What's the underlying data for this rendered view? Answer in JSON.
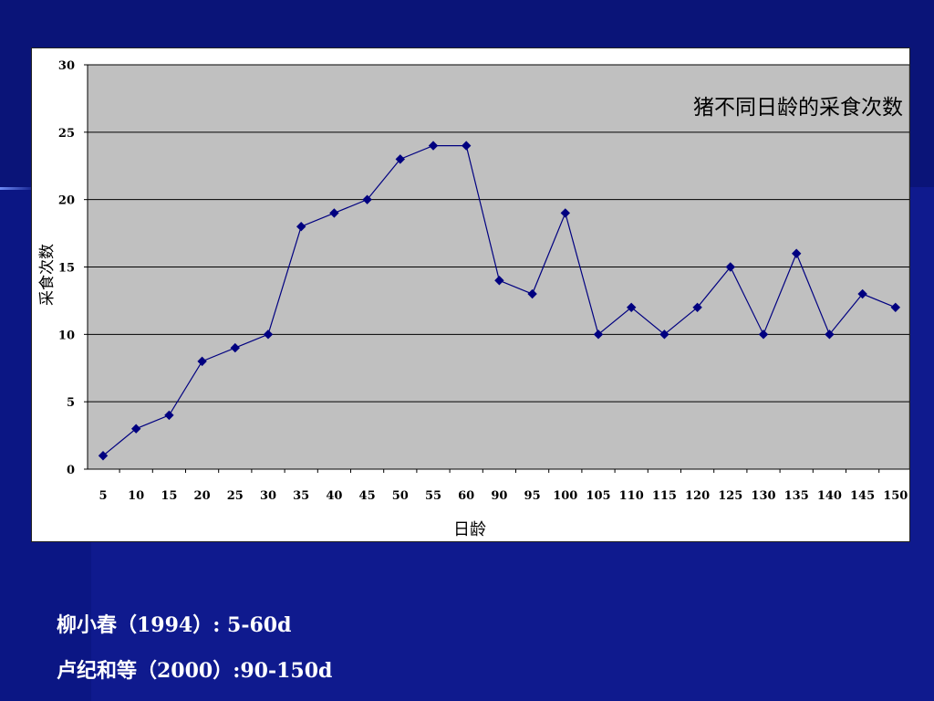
{
  "chart_data": {
    "type": "line",
    "title": "猪不同日龄的采食次数",
    "xlabel": "日龄",
    "ylabel": "采食次数",
    "categories": [
      "5",
      "10",
      "15",
      "20",
      "25",
      "30",
      "35",
      "40",
      "45",
      "50",
      "55",
      "60",
      "90",
      "95",
      "100",
      "105",
      "110",
      "115",
      "120",
      "125",
      "130",
      "135",
      "140",
      "145",
      "150"
    ],
    "series": [
      {
        "values": [
          1,
          3,
          4,
          8,
          9,
          10,
          18,
          19,
          20,
          23,
          24,
          24,
          14,
          13,
          19,
          10,
          12,
          10,
          12,
          15,
          10,
          16,
          10,
          13,
          12
        ]
      }
    ],
    "ylim": [
      0,
      30
    ],
    "yticks": [
      0,
      5,
      10,
      15,
      20,
      25,
      30
    ],
    "grid": true,
    "legend": "none",
    "colors": {
      "line": "#000080",
      "plot_bg": "#c0c0c0",
      "grid": "#000000"
    }
  },
  "captions": [
    {
      "text": "柳小春（1994）: 5-60d"
    },
    {
      "text": "卢纪和等（2000）:90-150d"
    }
  ]
}
